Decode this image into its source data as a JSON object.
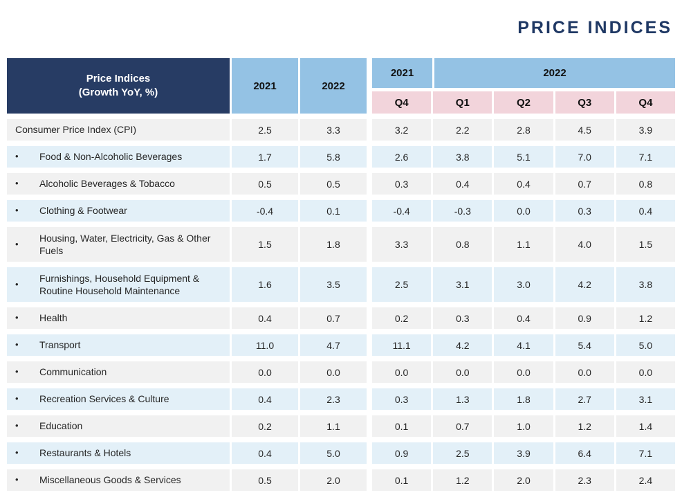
{
  "page_title": "PRICE INDICES",
  "colors": {
    "title": "#1F3864",
    "header_navy": "#273C64",
    "header_blue": "#94C2E4",
    "header_pink": "#F2D4DB",
    "row_gray": "#F1F1F1",
    "row_blue": "#E3F0F8",
    "text": "#262626"
  },
  "table": {
    "header": {
      "label_line1": "Price Indices",
      "label_line2": "(Growth YoY, %)",
      "annual_columns": [
        "2021",
        "2022"
      ],
      "quarter_years": [
        {
          "label": "2021",
          "span": 1
        },
        {
          "label": "2022",
          "span": 4
        }
      ],
      "quarter_columns": [
        "Q4",
        "Q1",
        "Q2",
        "Q3",
        "Q4"
      ]
    },
    "rows": [
      {
        "label": "Consumer Price Index (CPI)",
        "bullet": false,
        "tall": false,
        "values": [
          "2.5",
          "3.3",
          "3.2",
          "2.2",
          "2.8",
          "4.5",
          "3.9"
        ]
      },
      {
        "label": "Food & Non-Alcoholic Beverages",
        "bullet": true,
        "tall": false,
        "values": [
          "1.7",
          "5.8",
          "2.6",
          "3.8",
          "5.1",
          "7.0",
          "7.1"
        ]
      },
      {
        "label": "Alcoholic Beverages & Tobacco",
        "bullet": true,
        "tall": false,
        "values": [
          "0.5",
          "0.5",
          "0.3",
          "0.4",
          "0.4",
          "0.7",
          "0.8"
        ]
      },
      {
        "label": "Clothing & Footwear",
        "bullet": true,
        "tall": false,
        "values": [
          "-0.4",
          "0.1",
          "-0.4",
          "-0.3",
          "0.0",
          "0.3",
          "0.4"
        ]
      },
      {
        "label": "Housing, Water, Electricity, Gas & Other Fuels",
        "bullet": true,
        "tall": true,
        "values": [
          "1.5",
          "1.8",
          "3.3",
          "0.8",
          "1.1",
          "4.0",
          "1.5"
        ]
      },
      {
        "label": "Furnishings, Household Equipment & Routine Household Maintenance",
        "bullet": true,
        "tall": true,
        "values": [
          "1.6",
          "3.5",
          "2.5",
          "3.1",
          "3.0",
          "4.2",
          "3.8"
        ]
      },
      {
        "label": "Health",
        "bullet": true,
        "tall": false,
        "values": [
          "0.4",
          "0.7",
          "0.2",
          "0.3",
          "0.4",
          "0.9",
          "1.2"
        ]
      },
      {
        "label": "Transport",
        "bullet": true,
        "tall": false,
        "values": [
          "11.0",
          "4.7",
          "11.1",
          "4.2",
          "4.1",
          "5.4",
          "5.0"
        ]
      },
      {
        "label": "Communication",
        "bullet": true,
        "tall": false,
        "values": [
          "0.0",
          "0.0",
          "0.0",
          "0.0",
          "0.0",
          "0.0",
          "0.0"
        ]
      },
      {
        "label": "Recreation Services & Culture",
        "bullet": true,
        "tall": false,
        "values": [
          "0.4",
          "2.3",
          "0.3",
          "1.3",
          "1.8",
          "2.7",
          "3.1"
        ]
      },
      {
        "label": "Education",
        "bullet": true,
        "tall": false,
        "values": [
          "0.2",
          "1.1",
          "0.1",
          "0.7",
          "1.0",
          "1.2",
          "1.4"
        ]
      },
      {
        "label": "Restaurants & Hotels",
        "bullet": true,
        "tall": false,
        "values": [
          "0.4",
          "5.0",
          "0.9",
          "2.5",
          "3.9",
          "6.4",
          "7.1"
        ]
      },
      {
        "label": "Miscellaneous Goods & Services",
        "bullet": true,
        "tall": false,
        "values": [
          "0.5",
          "2.0",
          "0.1",
          "1.2",
          "2.0",
          "2.3",
          "2.4"
        ]
      }
    ]
  }
}
